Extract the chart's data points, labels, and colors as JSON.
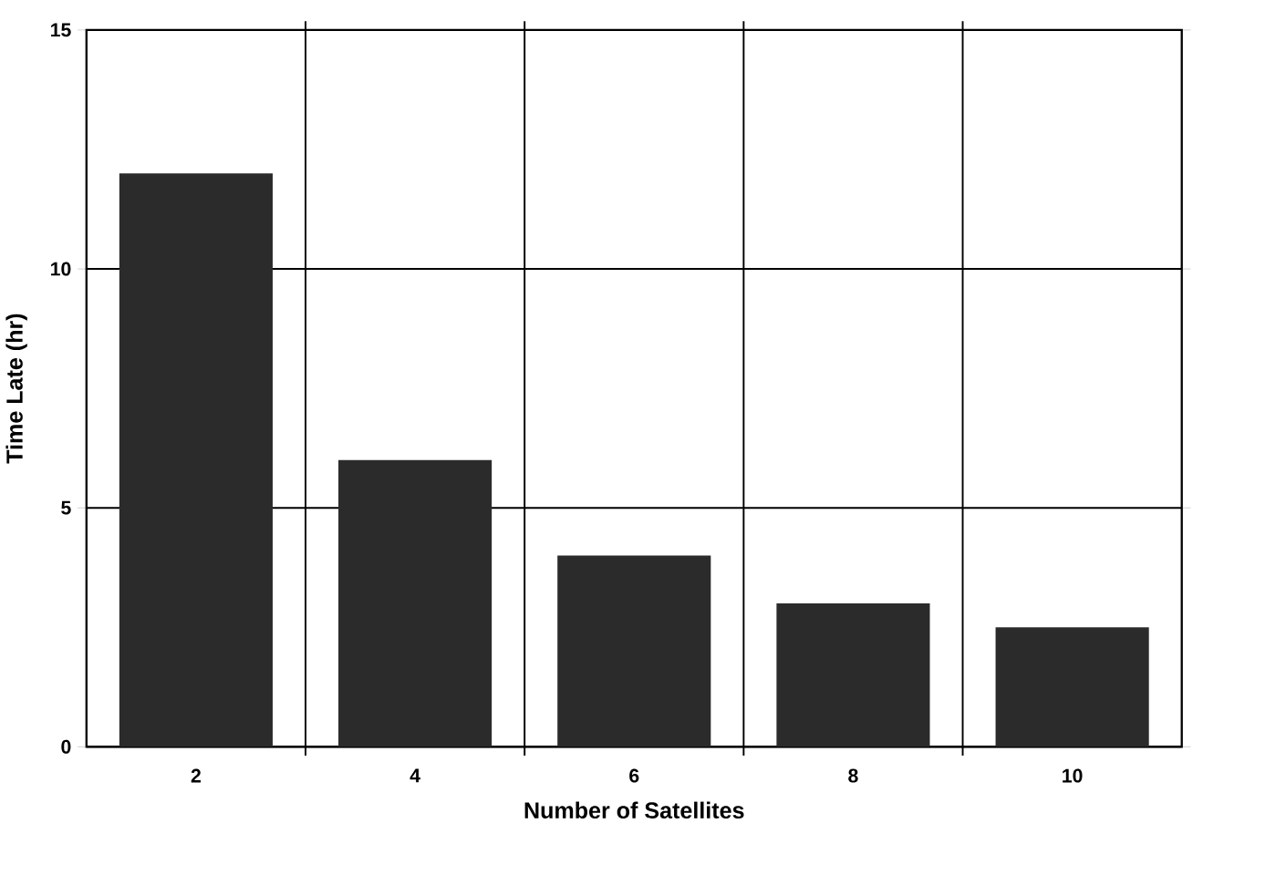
{
  "chart_data": {
    "type": "bar",
    "xlabel": "Number of Satellites",
    "ylabel": "Time Late (hr)",
    "categories": [
      "2",
      "4",
      "6",
      "8",
      "10"
    ],
    "values": [
      12,
      6,
      4,
      3,
      2.5
    ],
    "color": "#2b2b2b",
    "ylim": [
      0,
      15
    ],
    "yticks": [
      0,
      5,
      10,
      15
    ],
    "grid": true
  }
}
